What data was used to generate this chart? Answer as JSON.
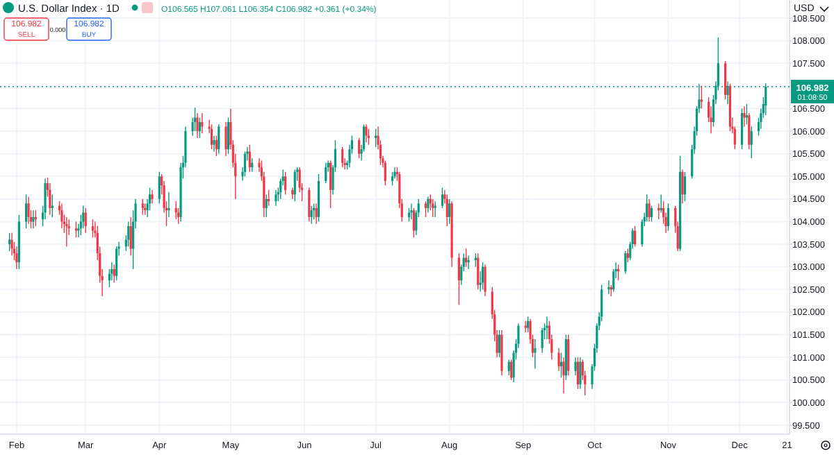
{
  "chart_data": {
    "type": "candlestick",
    "title": "U.S. Dollar Index · 1D",
    "annotations": [
      "O106.565 H107.061 L106.354 C106.982 +0.361 (+0.34%)",
      "106.982",
      "SELL",
      "0.000",
      "106.982",
      "BUY",
      "USD",
      "01:08:50"
    ],
    "grid": true,
    "xlim": [
      "--01-25",
      "--12-22"
    ],
    "xticks": [
      {
        "value": "--02-01",
        "label": "Feb"
      },
      {
        "value": "--03-01",
        "label": "Mar"
      },
      {
        "value": "--04-01",
        "label": "Apr"
      },
      {
        "value": "--05-01",
        "label": "May"
      },
      {
        "value": "--06-01",
        "label": "Jun"
      },
      {
        "value": "--07-01",
        "label": "Jul"
      },
      {
        "value": "--08-01",
        "label": "Aug"
      },
      {
        "value": "--09-01",
        "label": "Sep"
      },
      {
        "value": "--10-01",
        "label": "Oct"
      },
      {
        "value": "--11-01",
        "label": "Nov"
      },
      {
        "value": "--12-01",
        "label": "Dec"
      },
      {
        "value": "--12-21",
        "label": "21"
      }
    ],
    "ylim": [
      99.3,
      108.9
    ],
    "yticks": [
      {
        "value": 99.5,
        "label": "99.500"
      },
      {
        "value": 100,
        "label": "100.000"
      },
      {
        "value": 100.5,
        "label": "100.500"
      },
      {
        "value": 101,
        "label": "101.000"
      },
      {
        "value": 101.5,
        "label": "101.500"
      },
      {
        "value": 102,
        "label": "102.000"
      },
      {
        "value": 102.5,
        "label": "102.500"
      },
      {
        "value": 103,
        "label": "103.000"
      },
      {
        "value": 103.5,
        "label": "103.500"
      },
      {
        "value": 104,
        "label": "104.000"
      },
      {
        "value": 104.5,
        "label": "104.500"
      },
      {
        "value": 105,
        "label": "105.000"
      },
      {
        "value": 105.5,
        "label": "105.500"
      },
      {
        "value": 106,
        "label": "106.000"
      },
      {
        "value": 106.5,
        "label": "106.500"
      },
      {
        "value": 107,
        "label": null
      },
      {
        "value": 107.5,
        "label": "107.500"
      },
      {
        "value": 108,
        "label": "108.000"
      },
      {
        "value": 108.5,
        "label": "108.500"
      }
    ],
    "ref_lines": [
      {
        "axis": "y",
        "value": 106.982,
        "label": "106.982",
        "color": "#089981",
        "line_style": "dotted"
      }
    ],
    "x": [
      "--01-29",
      "--01-30",
      "--01-31",
      "--02-01",
      "--02-02",
      "--02-05",
      "--02-06",
      "--02-07",
      "--02-08",
      "--02-09",
      "--02-12",
      "--02-13",
      "--02-14",
      "--02-15",
      "--02-16",
      "--02-19",
      "--02-20",
      "--02-21",
      "--02-22",
      "--02-23",
      "--02-26",
      "--02-27",
      "--02-28",
      "--02-29",
      "--03-01",
      "--03-04",
      "--03-05",
      "--03-06",
      "--03-07",
      "--03-08",
      "--03-11",
      "--03-12",
      "--03-13",
      "--03-14",
      "--03-15",
      "--03-18",
      "--03-19",
      "--03-20",
      "--03-21",
      "--03-22",
      "--03-25",
      "--03-26",
      "--03-27",
      "--03-28",
      "--03-29",
      "--04-01",
      "--04-02",
      "--04-03",
      "--04-04",
      "--04-05",
      "--04-08",
      "--04-09",
      "--04-10",
      "--04-11",
      "--04-12",
      "--04-15",
      "--04-16",
      "--04-17",
      "--04-18",
      "--04-19",
      "--04-22",
      "--04-23",
      "--04-24",
      "--04-25",
      "--04-26",
      "--04-29",
      "--04-30",
      "--05-01",
      "--05-02",
      "--05-03",
      "--05-06",
      "--05-07",
      "--05-08",
      "--05-09",
      "--05-10",
      "--05-13",
      "--05-14",
      "--05-15",
      "--05-16",
      "--05-17",
      "--05-20",
      "--05-21",
      "--05-22",
      "--05-23",
      "--05-24",
      "--05-27",
      "--05-28",
      "--05-29",
      "--05-30",
      "--05-31",
      "--06-03",
      "--06-04",
      "--06-05",
      "--06-06",
      "--06-07",
      "--06-10",
      "--06-11",
      "--06-12",
      "--06-13",
      "--06-14",
      "--06-17",
      "--06-18",
      "--06-19",
      "--06-20",
      "--06-21",
      "--06-24",
      "--06-25",
      "--06-26",
      "--06-27",
      "--06-28",
      "--07-01",
      "--07-02",
      "--07-03",
      "--07-04",
      "--07-05",
      "--07-08",
      "--07-09",
      "--07-10",
      "--07-11",
      "--07-12",
      "--07-15",
      "--07-16",
      "--07-17",
      "--07-18",
      "--07-19",
      "--07-22",
      "--07-23",
      "--07-24",
      "--07-25",
      "--07-26",
      "--07-29",
      "--07-30",
      "--07-31",
      "--08-01",
      "--08-02",
      "--08-05",
      "--08-06",
      "--08-07",
      "--08-08",
      "--08-09",
      "--08-12",
      "--08-13",
      "--08-14",
      "--08-15",
      "--08-16",
      "--08-19",
      "--08-20",
      "--08-21",
      "--08-22",
      "--08-23",
      "--08-26",
      "--08-27",
      "--08-28",
      "--08-29",
      "--08-30",
      "--09-02",
      "--09-03",
      "--09-04",
      "--09-05",
      "--09-06",
      "--09-09",
      "--09-10",
      "--09-11",
      "--09-12",
      "--09-13",
      "--09-16",
      "--09-17",
      "--09-18",
      "--09-19",
      "--09-20",
      "--09-23",
      "--09-24",
      "--09-25",
      "--09-26",
      "--09-27",
      "--09-30",
      "--10-01",
      "--10-02",
      "--10-03",
      "--10-04",
      "--10-07",
      "--10-08",
      "--10-09",
      "--10-10",
      "--10-11",
      "--10-14",
      "--10-15",
      "--10-16",
      "--10-17",
      "--10-18",
      "--10-21",
      "--10-22",
      "--10-23",
      "--10-24",
      "--10-25",
      "--10-28",
      "--10-29",
      "--10-30",
      "--10-31",
      "--11-01",
      "--11-04",
      "--11-05",
      "--11-06",
      "--11-07",
      "--11-08",
      "--11-11",
      "--11-12",
      "--11-13",
      "--11-14",
      "--11-15",
      "--11-18",
      "--11-19",
      "--11-20",
      "--11-21",
      "--11-22",
      "--11-25",
      "--11-26",
      "--11-27",
      "--11-28",
      "--11-29",
      "--12-02",
      "--12-03",
      "--12-04",
      "--12-05",
      "--12-06",
      "--12-09",
      "--12-10",
      "--12-11",
      "--12-12"
    ],
    "colors": [
      "#089981",
      "#f23645",
      "#f23645",
      "#f23645",
      "#089981",
      "#089981",
      "#f23645",
      "#f23645",
      "#089981",
      "#f23645",
      "#089981",
      "#089981",
      "#f23645",
      "#f23645",
      "#089981",
      "#f23645",
      "#f23645",
      "#f23645",
      "#f23645",
      "#f23645",
      "#f23645",
      "#089981",
      "#089981",
      "#089981",
      "#f23645",
      "#f23645",
      "#f23645",
      "#f23645",
      "#f23645",
      "#f23645",
      "#089981",
      "#089981",
      "#f23645",
      "#089981",
      "#089981",
      "#089981",
      "#089981",
      "#f23645",
      "#089981",
      "#089981",
      "#f23645",
      "#f23645",
      "#089981",
      "#089981",
      "#f23645",
      "#089981",
      "#f23645",
      "#f23645",
      "#f23645",
      "#089981",
      "#f23645",
      "#f23645",
      "#089981",
      "#089981",
      "#089981",
      "#089981",
      "#089981",
      "#f23645",
      "#089981",
      "#f23645",
      "#f23645",
      "#f23645",
      "#089981",
      "#f23645",
      "#089981",
      "#f23645",
      "#089981",
      "#f23645",
      "#f23645",
      "#f23645",
      "#089981",
      "#089981",
      "#089981",
      "#f23645",
      "#089981",
      "#f23645",
      "#f23645",
      "#f23645",
      "#089981",
      "#f23645",
      "#089981",
      "#089981",
      "#089981",
      "#089981",
      "#f23645",
      "#f23645",
      "#089981",
      "#089981",
      "#f23645",
      "#f23645",
      "#f23645",
      "#089981",
      "#089981",
      "#f23645",
      "#089981",
      "#089981",
      "#089981",
      "#f23645",
      "#089981",
      "#089981",
      "#f23645",
      "#f23645",
      "#089981",
      "#089981",
      "#089981",
      "#f23645",
      "#089981",
      "#089981",
      "#f23645",
      "#f23645",
      "#089981",
      "#f23645",
      "#f23645",
      "#f23645",
      "#f23645",
      "#089981",
      "#089981",
      "#f23645",
      "#f23645",
      "#f23645",
      "#089981",
      "#089981",
      "#f23645",
      "#089981",
      "#089981",
      "#f23645",
      "#089981",
      "#f23645",
      "#f23645",
      "#089981",
      "#089981",
      "#f23645",
      "#f23645",
      "#089981",
      "#f23645",
      "#f23645",
      "#089981",
      "#089981",
      "#f23645",
      "#089981",
      "#089981",
      "#f23645",
      "#089981",
      "#089981",
      "#f23645",
      "#f23645",
      "#f23645",
      "#f23645",
      "#089981",
      "#f23645",
      "#089981",
      "#f23645",
      "#089981",
      "#089981",
      "#089981",
      "#f23645",
      "#089981",
      "#f23645",
      "#f23645",
      "#089981",
      "#089981",
      "#089981",
      "#089981",
      "#f23645",
      "#f23645",
      "#f23645",
      "#089981",
      "#f23645",
      "#089981",
      "#f23645",
      "#089981",
      "#f23645",
      "#089981",
      "#f23645",
      "#f23645",
      "#089981",
      "#089981",
      "#089981",
      "#089981",
      "#089981",
      "#089981",
      "#f23645",
      "#089981",
      "#089981",
      "#f23645",
      "#089981",
      "#f23645",
      "#089981",
      "#089981",
      "#f23645",
      "#089981",
      "#089981",
      "#089981",
      "#f23645",
      "#089981",
      "#f23645",
      "#089981",
      "#f23645",
      "#f23645",
      "#089981",
      "#f23645",
      "#f23645",
      "#089981",
      "#f23645",
      "#089981",
      "#089981",
      "#089981",
      "#089981",
      "#089981",
      "#f23645",
      "#f23645",
      "#f23645",
      "#089981",
      "#089981",
      "#089981",
      "#f23645",
      "#089981",
      "#f23645",
      "#f23645",
      "#f23645",
      "#089981",
      "#f23645",
      "#089981",
      "#f23645",
      "#089981",
      "#089981",
      "#089981",
      "#089981",
      "#089981"
    ],
    "ohlc": [
      [
        103.5,
        103.75,
        103.35,
        103.6
      ],
      [
        103.6,
        103.75,
        103.25,
        103.4
      ],
      [
        103.4,
        103.55,
        103.15,
        103.3
      ],
      [
        103.3,
        103.45,
        102.95,
        103.1
      ],
      [
        103.1,
        104.15,
        102.95,
        104.0
      ],
      [
        104.0,
        104.6,
        103.85,
        104.4
      ],
      [
        104.4,
        104.55,
        103.95,
        104.1
      ],
      [
        104.1,
        104.25,
        103.85,
        104.0
      ],
      [
        104.0,
        104.25,
        103.85,
        104.1
      ],
      [
        104.1,
        104.25,
        103.9,
        104.05
      ],
      [
        104.05,
        104.35,
        103.9,
        104.2
      ],
      [
        104.2,
        104.95,
        104.05,
        104.85
      ],
      [
        104.85,
        104.97,
        104.55,
        104.7
      ],
      [
        104.7,
        104.85,
        104.15,
        104.3
      ],
      [
        104.3,
        104.6,
        104.1,
        104.35
      ],
      [
        104.35,
        104.45,
        104.15,
        104.25
      ],
      [
        104.25,
        104.4,
        103.85,
        104.0
      ],
      [
        104.0,
        104.15,
        103.75,
        103.95
      ],
      [
        103.95,
        104.1,
        103.45,
        103.9
      ],
      [
        103.9,
        104.05,
        103.7,
        103.85
      ],
      [
        103.85,
        104.0,
        103.65,
        103.8
      ],
      [
        103.8,
        103.95,
        103.65,
        103.85
      ],
      [
        103.85,
        104.15,
        103.7,
        104.0
      ],
      [
        104.0,
        104.35,
        103.85,
        104.2
      ],
      [
        104.2,
        104.3,
        103.75,
        103.9
      ],
      [
        103.9,
        104.05,
        103.65,
        103.8
      ],
      [
        103.8,
        104.0,
        103.65,
        103.75
      ],
      [
        103.75,
        103.9,
        103.15,
        103.3
      ],
      [
        103.3,
        103.45,
        102.65,
        102.8
      ],
      [
        102.8,
        102.95,
        102.35,
        102.7
      ],
      [
        102.7,
        102.95,
        102.55,
        102.85
      ],
      [
        102.85,
        103.1,
        102.7,
        102.95
      ],
      [
        102.95,
        103.05,
        102.65,
        102.8
      ],
      [
        102.8,
        103.45,
        102.7,
        103.4
      ],
      [
        103.4,
        103.55,
        103.25,
        103.45
      ],
      [
        103.45,
        103.7,
        103.35,
        103.6
      ],
      [
        103.6,
        104.0,
        103.45,
        103.9
      ],
      [
        103.9,
        104.1,
        103.25,
        103.4
      ],
      [
        103.4,
        104.25,
        102.95,
        104.0
      ],
      [
        104.0,
        104.5,
        103.85,
        104.4
      ],
      [
        104.4,
        104.5,
        104.15,
        104.3
      ],
      [
        104.3,
        104.4,
        104.15,
        104.25
      ],
      [
        104.25,
        104.5,
        104.1,
        104.4
      ],
      [
        104.4,
        104.75,
        104.25,
        104.6
      ],
      [
        104.6,
        104.7,
        104.4,
        104.5
      ],
      [
        104.5,
        105.1,
        104.4,
        105.0
      ],
      [
        105.0,
        105.05,
        104.6,
        104.8
      ],
      [
        104.8,
        104.9,
        104.2,
        104.3
      ],
      [
        104.3,
        104.45,
        103.9,
        104.25
      ],
      [
        104.25,
        104.65,
        104.1,
        104.3
      ],
      [
        104.3,
        104.45,
        104.05,
        104.2
      ],
      [
        104.2,
        104.3,
        103.95,
        104.1
      ],
      [
        104.1,
        105.3,
        104.0,
        105.2
      ],
      [
        105.2,
        105.45,
        104.95,
        105.3
      ],
      [
        105.3,
        106.1,
        105.2,
        106.0
      ],
      [
        106.0,
        106.3,
        105.9,
        106.2
      ],
      [
        106.2,
        106.52,
        106.0,
        106.3
      ],
      [
        106.3,
        106.4,
        105.85,
        106.0
      ],
      [
        106.0,
        106.3,
        105.85,
        106.2
      ],
      [
        106.2,
        106.4,
        105.95,
        106.1
      ],
      [
        106.1,
        106.25,
        105.95,
        106.05
      ],
      [
        106.05,
        106.15,
        105.6,
        105.7
      ],
      [
        105.7,
        105.9,
        105.55,
        105.8
      ],
      [
        105.8,
        105.9,
        105.45,
        105.6
      ],
      [
        105.6,
        106.15,
        105.5,
        106.1
      ],
      [
        106.1,
        106.2,
        105.45,
        105.6
      ],
      [
        105.6,
        106.3,
        105.5,
        106.2
      ],
      [
        106.2,
        106.5,
        105.6,
        105.7
      ],
      [
        105.7,
        105.8,
        105.2,
        105.3
      ],
      [
        105.3,
        105.5,
        104.5,
        105.0
      ],
      [
        105.0,
        105.2,
        104.9,
        105.1
      ],
      [
        105.1,
        105.55,
        105.0,
        105.5
      ],
      [
        105.5,
        105.65,
        105.35,
        105.55
      ],
      [
        105.55,
        105.7,
        105.1,
        105.2
      ],
      [
        105.2,
        105.4,
        105.1,
        105.3
      ],
      [
        105.3,
        105.4,
        105.1,
        105.2
      ],
      [
        105.2,
        105.35,
        104.9,
        105.0
      ],
      [
        105.0,
        105.1,
        104.1,
        104.3
      ],
      [
        104.3,
        104.6,
        104.1,
        104.5
      ],
      [
        104.5,
        104.7,
        104.35,
        104.45
      ],
      [
        104.45,
        104.7,
        104.35,
        104.6
      ],
      [
        104.6,
        104.75,
        104.45,
        104.65
      ],
      [
        104.65,
        104.95,
        104.5,
        104.9
      ],
      [
        104.9,
        105.15,
        104.8,
        105.0
      ],
      [
        105.0,
        105.1,
        104.6,
        104.7
      ],
      [
        104.7,
        104.75,
        104.5,
        104.6
      ],
      [
        104.6,
        105.15,
        104.45,
        105.1
      ],
      [
        105.1,
        105.2,
        104.9,
        105.15
      ],
      [
        105.15,
        105.2,
        104.65,
        104.75
      ],
      [
        104.75,
        104.85,
        104.45,
        104.7
      ],
      [
        104.7,
        104.75,
        104.0,
        104.1
      ],
      [
        104.1,
        104.35,
        103.95,
        104.25
      ],
      [
        104.25,
        104.4,
        104.05,
        104.3
      ],
      [
        104.3,
        104.4,
        103.95,
        104.1
      ],
      [
        104.1,
        105.05,
        104.0,
        104.9
      ],
      [
        104.9,
        105.3,
        104.85,
        105.2
      ],
      [
        105.2,
        105.35,
        105.1,
        105.3
      ],
      [
        105.3,
        105.35,
        104.3,
        104.7
      ],
      [
        104.7,
        105.25,
        104.6,
        105.2
      ],
      [
        105.2,
        105.8,
        105.1,
        105.6
      ],
      [
        105.6,
        105.65,
        105.2,
        105.3
      ],
      [
        105.3,
        105.4,
        105.15,
        105.25
      ],
      [
        105.25,
        105.35,
        105.15,
        105.3
      ],
      [
        105.3,
        105.7,
        105.2,
        105.6
      ],
      [
        105.6,
        105.9,
        105.5,
        105.8
      ],
      [
        105.8,
        105.85,
        105.4,
        105.5
      ],
      [
        105.5,
        105.7,
        105.35,
        105.6
      ],
      [
        105.6,
        106.15,
        105.55,
        106.1
      ],
      [
        106.1,
        106.15,
        105.75,
        105.9
      ],
      [
        105.9,
        106.05,
        105.7,
        105.85
      ],
      [
        105.85,
        106.05,
        105.65,
        105.9
      ],
      [
        105.9,
        106.1,
        105.6,
        105.7
      ],
      [
        105.7,
        105.8,
        105.25,
        105.4
      ],
      [
        105.4,
        105.45,
        105.2,
        105.3
      ],
      [
        105.3,
        105.35,
        104.8,
        104.9
      ],
      [
        104.9,
        105.1,
        104.8,
        105.0
      ],
      [
        105.0,
        105.2,
        104.95,
        105.1
      ],
      [
        105.1,
        105.2,
        104.9,
        105.05
      ],
      [
        105.05,
        105.1,
        104.3,
        104.4
      ],
      [
        104.4,
        104.5,
        104.0,
        104.1
      ],
      [
        104.1,
        104.3,
        104.0,
        104.2
      ],
      [
        104.2,
        104.4,
        104.05,
        104.25
      ],
      [
        104.25,
        104.3,
        103.65,
        103.8
      ],
      [
        103.8,
        104.25,
        103.7,
        104.2
      ],
      [
        104.2,
        104.5,
        104.1,
        104.4
      ],
      [
        104.4,
        104.45,
        104.1,
        104.3
      ],
      [
        104.3,
        104.55,
        104.2,
        104.5
      ],
      [
        104.5,
        104.6,
        104.25,
        104.4
      ],
      [
        104.4,
        104.5,
        104.1,
        104.3
      ],
      [
        104.3,
        104.45,
        104.1,
        104.35
      ],
      [
        104.35,
        104.75,
        104.3,
        104.6
      ],
      [
        104.6,
        104.7,
        104.4,
        104.5
      ],
      [
        104.5,
        104.6,
        103.9,
        104.1
      ],
      [
        104.1,
        104.5,
        103.95,
        104.4
      ],
      [
        104.4,
        104.45,
        103.0,
        103.2
      ],
      [
        103.2,
        103.3,
        102.16,
        102.7
      ],
      [
        102.7,
        103.05,
        102.6,
        103.0
      ],
      [
        103.0,
        103.3,
        102.9,
        103.2
      ],
      [
        103.2,
        103.4,
        103.0,
        103.1
      ],
      [
        103.1,
        103.25,
        102.95,
        103.15
      ],
      [
        103.15,
        103.3,
        103.0,
        103.2
      ],
      [
        103.2,
        103.3,
        102.5,
        102.6
      ],
      [
        102.6,
        102.9,
        102.45,
        102.65
      ],
      [
        102.65,
        103.1,
        102.5,
        103.0
      ],
      [
        103.0,
        103.05,
        102.35,
        102.45
      ],
      [
        102.45,
        102.55,
        101.85,
        101.95
      ],
      [
        101.95,
        102.05,
        101.35,
        101.5
      ],
      [
        101.5,
        101.6,
        101.0,
        101.1
      ],
      [
        101.1,
        101.6,
        101.0,
        101.5
      ],
      [
        101.5,
        101.6,
        100.6,
        100.7
      ],
      [
        100.7,
        100.95,
        100.6,
        100.9
      ],
      [
        100.9,
        100.95,
        100.5,
        100.55
      ],
      [
        100.55,
        101.15,
        100.45,
        101.1
      ],
      [
        101.1,
        101.4,
        100.95,
        101.3
      ],
      [
        101.3,
        101.75,
        101.2,
        101.7
      ],
      [
        101.7,
        101.8,
        101.55,
        101.65
      ],
      [
        101.65,
        101.9,
        101.55,
        101.8
      ],
      [
        101.8,
        101.85,
        101.3,
        101.4
      ],
      [
        101.4,
        101.5,
        101.0,
        101.1
      ],
      [
        101.1,
        101.4,
        100.75,
        101.2
      ],
      [
        101.2,
        101.65,
        101.1,
        101.6
      ],
      [
        101.6,
        101.75,
        101.4,
        101.65
      ],
      [
        101.65,
        101.9,
        101.4,
        101.7
      ],
      [
        101.7,
        101.8,
        101.3,
        101.4
      ],
      [
        101.4,
        101.5,
        100.95,
        101.1
      ],
      [
        101.1,
        101.2,
        100.7,
        100.8
      ],
      [
        100.8,
        101.1,
        100.55,
        100.9
      ],
      [
        100.9,
        101.0,
        100.2,
        100.6
      ],
      [
        100.6,
        101.5,
        100.5,
        101.4
      ],
      [
        101.4,
        101.5,
        100.6,
        100.7
      ],
      [
        100.7,
        101.0,
        100.6,
        100.9
      ],
      [
        100.9,
        101.0,
        100.3,
        100.4
      ],
      [
        100.4,
        101.0,
        100.3,
        100.9
      ],
      [
        100.9,
        100.95,
        100.5,
        100.6
      ],
      [
        100.6,
        100.7,
        100.16,
        100.4
      ],
      [
        100.4,
        100.85,
        100.3,
        100.8
      ],
      [
        100.8,
        101.3,
        100.7,
        101.2
      ],
      [
        101.2,
        101.75,
        101.1,
        101.7
      ],
      [
        101.7,
        102.0,
        101.6,
        101.9
      ],
      [
        101.9,
        102.6,
        101.8,
        102.5
      ],
      [
        102.5,
        102.7,
        102.4,
        102.55
      ],
      [
        102.55,
        102.6,
        102.35,
        102.5
      ],
      [
        102.5,
        102.95,
        102.45,
        102.9
      ],
      [
        102.9,
        103.1,
        102.75,
        102.95
      ],
      [
        102.95,
        103.05,
        102.7,
        102.9
      ],
      [
        102.9,
        103.35,
        102.85,
        103.3
      ],
      [
        103.3,
        103.4,
        103.1,
        103.2
      ],
      [
        103.2,
        103.55,
        103.15,
        103.5
      ],
      [
        103.5,
        103.85,
        103.4,
        103.8
      ],
      [
        103.8,
        103.9,
        103.45,
        103.5
      ],
      [
        103.5,
        104.05,
        103.45,
        104.0
      ],
      [
        104.0,
        104.2,
        103.9,
        104.1
      ],
      [
        104.1,
        104.6,
        104.0,
        104.4
      ],
      [
        104.4,
        104.5,
        104.0,
        104.1
      ],
      [
        104.1,
        104.35,
        104.0,
        104.3
      ],
      [
        104.3,
        104.4,
        104.05,
        104.25
      ],
      [
        104.25,
        104.6,
        104.2,
        104.3
      ],
      [
        104.3,
        104.45,
        103.95,
        104.1
      ],
      [
        104.1,
        104.2,
        103.75,
        103.9
      ],
      [
        103.9,
        104.4,
        103.8,
        104.3
      ],
      [
        104.3,
        104.35,
        103.75,
        103.9
      ],
      [
        103.9,
        104.0,
        103.35,
        103.4
      ],
      [
        103.4,
        105.45,
        103.35,
        105.1
      ],
      [
        105.1,
        105.15,
        104.4,
        104.6
      ],
      [
        104.6,
        105.1,
        104.45,
        105.0
      ],
      [
        105.0,
        105.7,
        104.95,
        105.6
      ],
      [
        105.6,
        106.1,
        105.5,
        106.0
      ],
      [
        106.0,
        106.55,
        105.9,
        106.5
      ],
      [
        106.5,
        107.05,
        106.4,
        106.7
      ],
      [
        106.7,
        107.0,
        106.5,
        106.65
      ],
      [
        106.65,
        106.75,
        106.2,
        106.3
      ],
      [
        106.3,
        106.55,
        105.95,
        106.2
      ],
      [
        106.2,
        106.8,
        106.1,
        106.7
      ],
      [
        106.7,
        107.1,
        106.6,
        107.0
      ],
      [
        107.0,
        108.07,
        106.9,
        107.5
      ],
      [
        107.5,
        107.55,
        106.7,
        106.8
      ],
      [
        106.8,
        107.1,
        106.6,
        107.0
      ],
      [
        107.0,
        107.05,
        106.0,
        106.1
      ],
      [
        106.1,
        106.3,
        105.95,
        106.05
      ],
      [
        106.05,
        106.1,
        105.6,
        105.7
      ],
      [
        105.7,
        106.5,
        105.6,
        106.4
      ],
      [
        106.4,
        106.55,
        106.1,
        106.3
      ],
      [
        106.3,
        106.6,
        106.15,
        106.35
      ],
      [
        106.35,
        106.4,
        105.6,
        105.7
      ],
      [
        105.7,
        106.1,
        105.4,
        106.0
      ],
      [
        106.0,
        106.3,
        105.9,
        106.2
      ],
      [
        106.2,
        106.5,
        106.05,
        106.4
      ],
      [
        106.4,
        106.75,
        106.3,
        106.6
      ],
      [
        106.565,
        107.061,
        106.354,
        106.982
      ]
    ]
  }
}
